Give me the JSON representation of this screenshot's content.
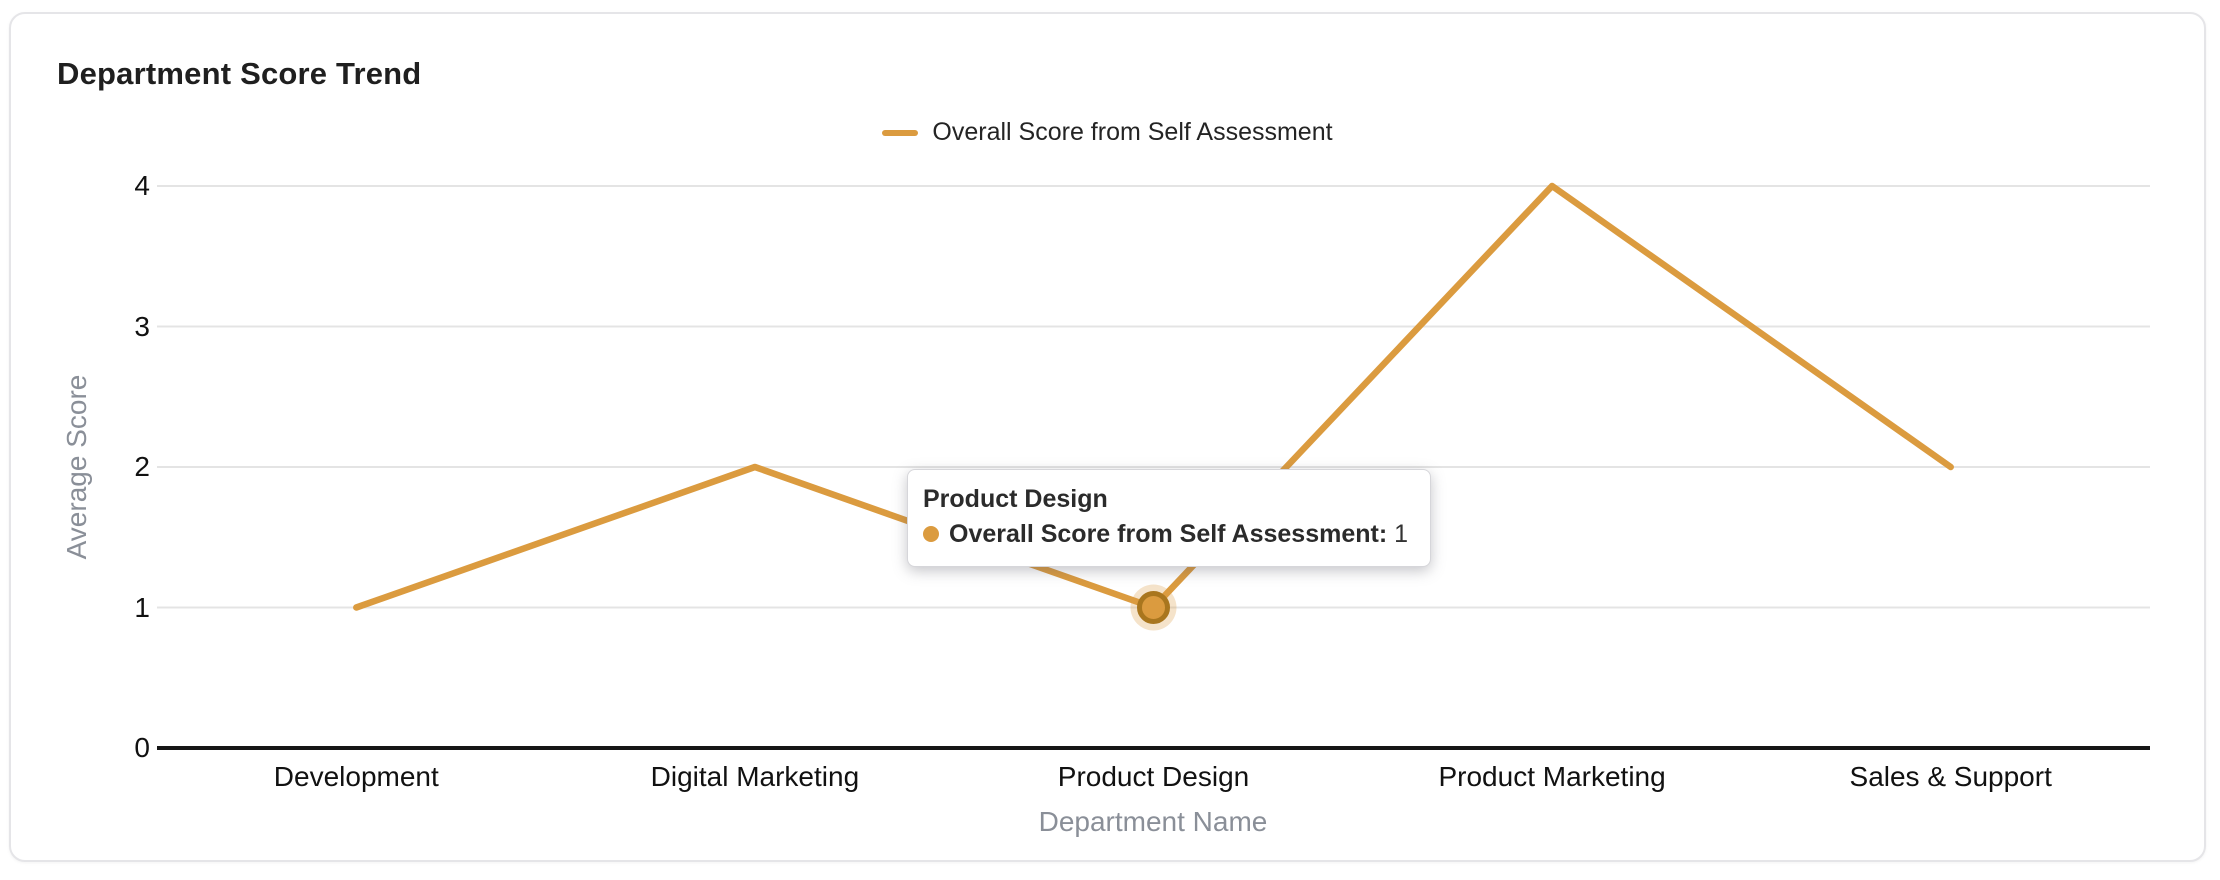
{
  "card": {
    "title": "Department Score Trend"
  },
  "legend": {
    "items": [
      {
        "label": "Overall Score from Self Assessment",
        "color": "#DB9B3F"
      }
    ]
  },
  "tooltip": {
    "title": "Product Design",
    "series_label": "Overall Score from Self Assessment:",
    "value": "1",
    "marker_color": "#DB9B3F"
  },
  "chart_data": {
    "type": "line",
    "title": "Department Score Trend",
    "categories": [
      "Development",
      "Digital Marketing",
      "Product Design",
      "Product Marketing",
      "Sales & Support"
    ],
    "series": [
      {
        "name": "Overall Score from Self Assessment",
        "values": [
          1,
          2,
          1,
          4,
          2
        ],
        "color": "#DB9B3F"
      }
    ],
    "highlighted_point": {
      "category": "Product Design",
      "value": 1
    },
    "xlabel": "Department Name",
    "ylabel": "Average Score",
    "ylim": [
      0,
      4
    ],
    "yticks": [
      0,
      1,
      2,
      3,
      4
    ],
    "grid": true,
    "legend_position": "top-center"
  },
  "colors": {
    "accent_line": "#DB9B3F",
    "highlight_ring": "#A9761E",
    "highlight_halo": "rgba(219,155,63,0.28)",
    "gridline": "#E4E4E4",
    "axis_line": "#161616",
    "tick_text": "#111111",
    "axis_name_text": "#8A8F98",
    "card_border": "#E5E5E8"
  }
}
